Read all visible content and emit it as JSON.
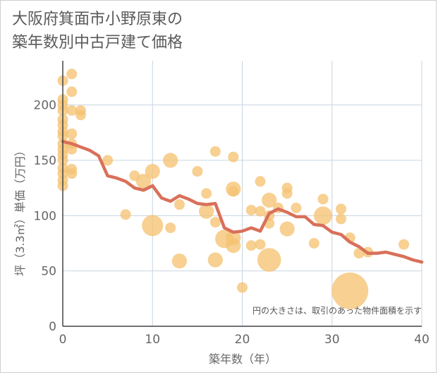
{
  "title_lines": [
    "大阪府箕面市小野原東の",
    "築年数別中古戸建て価格"
  ],
  "chart_data": {
    "type": "scatter",
    "title": "大阪府箕面市小野原東の築年数別中古戸建て価格",
    "xlabel": "築年数（年）",
    "ylabel": "坪（3.3㎡）単価（万円）",
    "xlim": [
      0,
      40
    ],
    "ylim": [
      0,
      240
    ],
    "x_ticks": [
      0,
      10,
      20,
      30,
      40
    ],
    "y_ticks": [
      0,
      50,
      100,
      150,
      200
    ],
    "grid": true,
    "note": "円の大きさは、取引のあった物件面積を示す",
    "colors": {
      "bubble": "#f5c373",
      "line": "#d9705a",
      "grid": "#c8d4e0"
    },
    "points": [
      {
        "x": 0,
        "y": 222,
        "s": 1
      },
      {
        "x": 0,
        "y": 205,
        "s": 1
      },
      {
        "x": 0,
        "y": 200,
        "s": 1
      },
      {
        "x": 0,
        "y": 195,
        "s": 1
      },
      {
        "x": 0,
        "y": 187,
        "s": 1
      },
      {
        "x": 0,
        "y": 182,
        "s": 1
      },
      {
        "x": 0,
        "y": 176,
        "s": 1
      },
      {
        "x": 0,
        "y": 172,
        "s": 1
      },
      {
        "x": 0,
        "y": 165,
        "s": 1
      },
      {
        "x": 0,
        "y": 160,
        "s": 1
      },
      {
        "x": 0,
        "y": 155,
        "s": 1
      },
      {
        "x": 0,
        "y": 150,
        "s": 1
      },
      {
        "x": 0,
        "y": 143,
        "s": 1
      },
      {
        "x": 0,
        "y": 138,
        "s": 1
      },
      {
        "x": 0,
        "y": 132,
        "s": 1
      },
      {
        "x": 0,
        "y": 127,
        "s": 1
      },
      {
        "x": 1,
        "y": 228,
        "s": 1
      },
      {
        "x": 1,
        "y": 212,
        "s": 1
      },
      {
        "x": 1,
        "y": 195,
        "s": 1
      },
      {
        "x": 1,
        "y": 174,
        "s": 1
      },
      {
        "x": 1,
        "y": 165,
        "s": 1
      },
      {
        "x": 1,
        "y": 160,
        "s": 1
      },
      {
        "x": 1,
        "y": 142,
        "s": 1
      },
      {
        "x": 1,
        "y": 138,
        "s": 1
      },
      {
        "x": 2,
        "y": 195,
        "s": 1
      },
      {
        "x": 2,
        "y": 191,
        "s": 1
      },
      {
        "x": 5,
        "y": 150,
        "s": 1
      },
      {
        "x": 7,
        "y": 101,
        "s": 1
      },
      {
        "x": 8,
        "y": 136,
        "s": 1
      },
      {
        "x": 9,
        "y": 131,
        "s": 2
      },
      {
        "x": 10,
        "y": 140,
        "s": 2
      },
      {
        "x": 10,
        "y": 91,
        "s": 4
      },
      {
        "x": 12,
        "y": 150,
        "s": 2
      },
      {
        "x": 12,
        "y": 89,
        "s": 1
      },
      {
        "x": 13,
        "y": 110,
        "s": 1
      },
      {
        "x": 13,
        "y": 59,
        "s": 2
      },
      {
        "x": 15,
        "y": 140,
        "s": 1
      },
      {
        "x": 16,
        "y": 120,
        "s": 1
      },
      {
        "x": 16,
        "y": 104,
        "s": 2
      },
      {
        "x": 17,
        "y": 158,
        "s": 1
      },
      {
        "x": 17,
        "y": 94,
        "s": 1
      },
      {
        "x": 17,
        "y": 60,
        "s": 2
      },
      {
        "x": 18,
        "y": 79,
        "s": 3
      },
      {
        "x": 19,
        "y": 153,
        "s": 1
      },
      {
        "x": 19,
        "y": 124,
        "s": 2
      },
      {
        "x": 19,
        "y": 122,
        "s": 1
      },
      {
        "x": 19,
        "y": 80,
        "s": 2
      },
      {
        "x": 19,
        "y": 73,
        "s": 2
      },
      {
        "x": 20,
        "y": 35,
        "s": 1
      },
      {
        "x": 21,
        "y": 105,
        "s": 1
      },
      {
        "x": 21,
        "y": 73,
        "s": 1
      },
      {
        "x": 22,
        "y": 131,
        "s": 1
      },
      {
        "x": 22,
        "y": 104,
        "s": 1
      },
      {
        "x": 22,
        "y": 74,
        "s": 1
      },
      {
        "x": 23,
        "y": 114,
        "s": 2
      },
      {
        "x": 23,
        "y": 100,
        "s": 1
      },
      {
        "x": 23,
        "y": 93,
        "s": 1
      },
      {
        "x": 23,
        "y": 60,
        "s": 5
      },
      {
        "x": 24,
        "y": 107,
        "s": 1
      },
      {
        "x": 25,
        "y": 125,
        "s": 1
      },
      {
        "x": 25,
        "y": 120,
        "s": 1
      },
      {
        "x": 25,
        "y": 88,
        "s": 2
      },
      {
        "x": 26,
        "y": 107,
        "s": 1
      },
      {
        "x": 28,
        "y": 75,
        "s": 1
      },
      {
        "x": 29,
        "y": 115,
        "s": 1
      },
      {
        "x": 29,
        "y": 100,
        "s": 3
      },
      {
        "x": 31,
        "y": 106,
        "s": 1
      },
      {
        "x": 31,
        "y": 97,
        "s": 1
      },
      {
        "x": 32,
        "y": 32,
        "s": 12
      },
      {
        "x": 32,
        "y": 80,
        "s": 1
      },
      {
        "x": 33,
        "y": 66,
        "s": 1
      },
      {
        "x": 34,
        "y": 67,
        "s": 1
      },
      {
        "x": 38,
        "y": 74,
        "s": 1
      }
    ],
    "trend": {
      "x": [
        0,
        1,
        2,
        3,
        4,
        5,
        6,
        7,
        8,
        9,
        10,
        11,
        12,
        13,
        14,
        15,
        16,
        17,
        18,
        19,
        20,
        21,
        22,
        23,
        24,
        25,
        26,
        27,
        28,
        29,
        30,
        31,
        32,
        33,
        34,
        35,
        36,
        37,
        38,
        39,
        40
      ],
      "y": [
        167,
        165,
        162,
        159,
        154,
        136,
        134,
        131,
        125,
        123,
        127,
        116,
        113,
        118,
        115,
        111,
        110,
        111,
        89,
        85,
        86,
        89,
        86,
        102,
        106,
        103,
        99,
        99,
        92,
        91,
        85,
        83,
        76,
        72,
        66,
        66,
        67,
        65,
        63,
        60,
        58
      ]
    }
  }
}
